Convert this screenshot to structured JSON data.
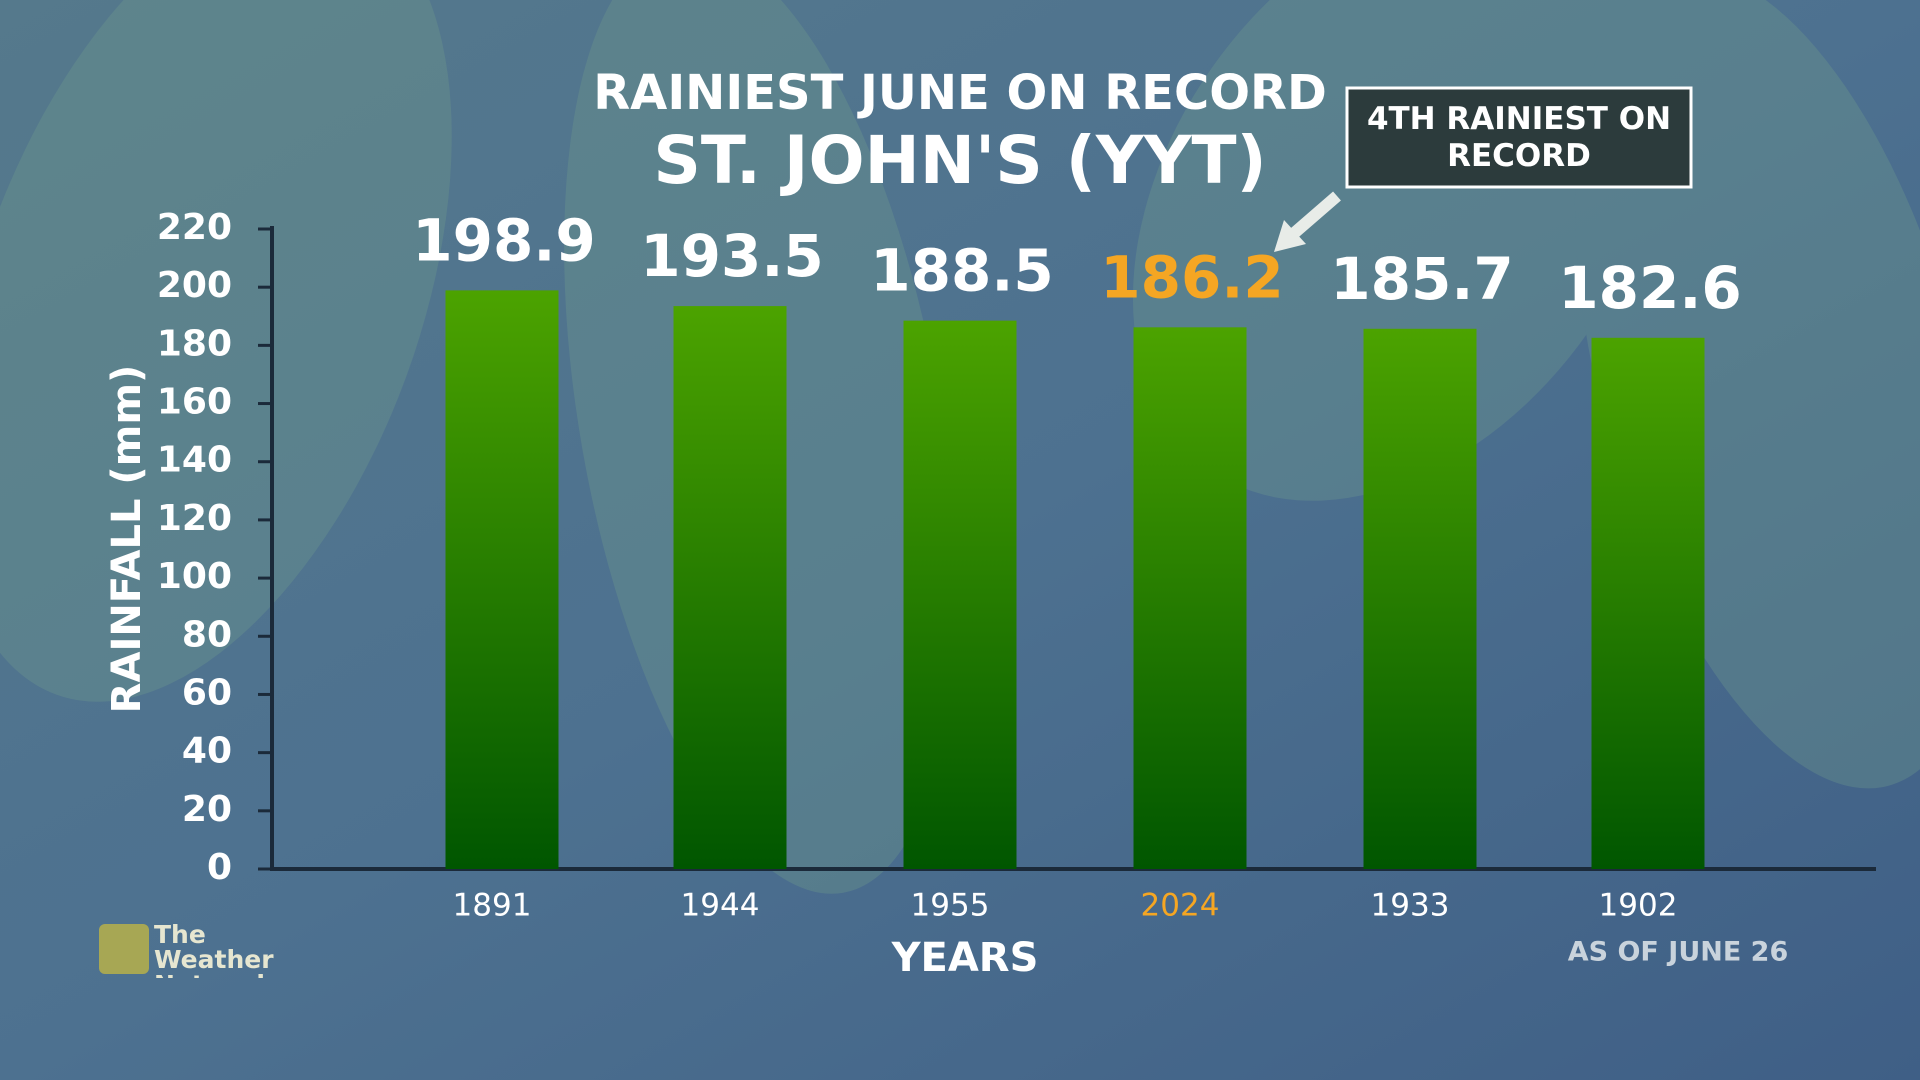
{
  "chart_data": {
    "type": "bar",
    "title": "RAINIEST JUNE ON RECORD",
    "subtitle": "ST. JOHN'S (YYT)",
    "annotation": "4TH RAINIEST ON RECORD",
    "note": "AS OF JUNE 26",
    "source": "The Weather Network",
    "y_label": "RAINFALL (mm)",
    "x_label": "YEARS",
    "categories": [
      "1891",
      "1944",
      "1955",
      "2024",
      "1933",
      "1902"
    ],
    "values": [
      198.9,
      193.5,
      188.5,
      186.2,
      185.7,
      182.6
    ],
    "bar_gradient": [
      "#4ca300",
      "#005600"
    ],
    "label_colors": [
      "#ffffff",
      "#ffffff",
      "#ffffff",
      "#f5a623",
      "#ffffff",
      "#ffffff"
    ],
    "ylim": [
      0,
      220
    ],
    "yticks": [
      0,
      20,
      40,
      60,
      80,
      100,
      120,
      140,
      160,
      180,
      200,
      220
    ]
  }
}
